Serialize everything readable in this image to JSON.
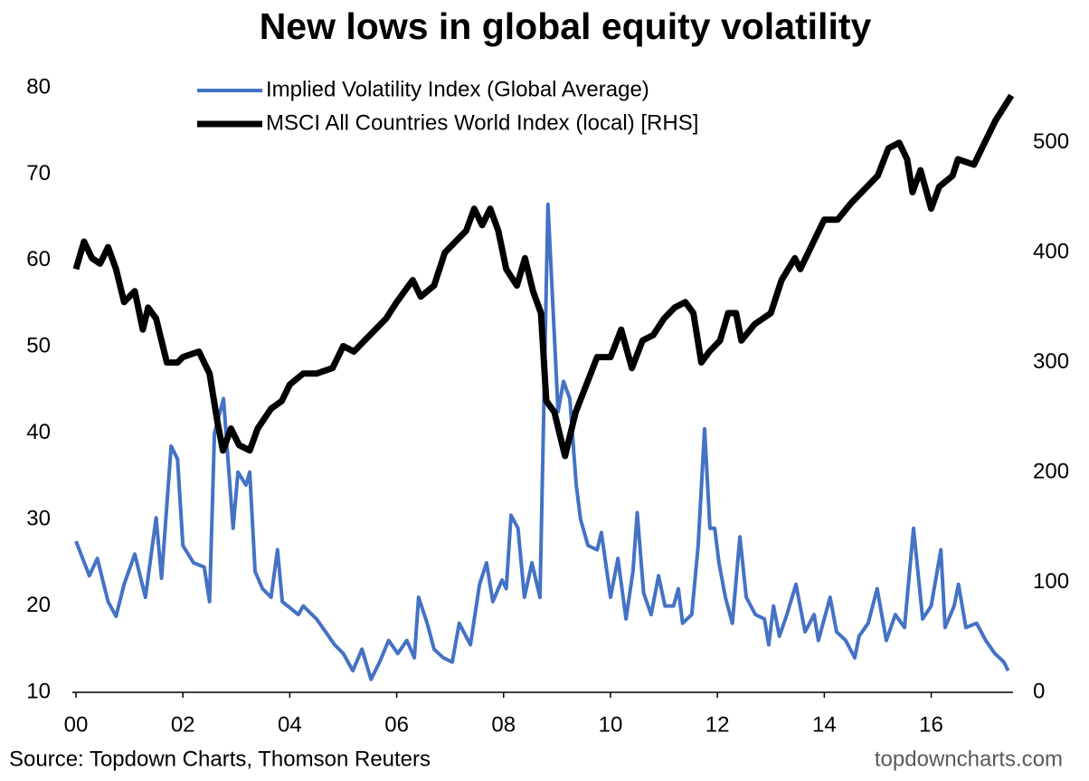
{
  "chart_data": {
    "type": "line",
    "title": "New lows in global equity volatility",
    "source": "Source: Topdown Charts, Thomson Reuters",
    "watermark": "topdowncharts.com",
    "xlim": [
      2000,
      2017.7
    ],
    "xticks": [
      {
        "value": 2000,
        "label": "00"
      },
      {
        "value": 2002,
        "label": "02"
      },
      {
        "value": 2004,
        "label": "04"
      },
      {
        "value": 2006,
        "label": "06"
      },
      {
        "value": 2008,
        "label": "08"
      },
      {
        "value": 2010,
        "label": "10"
      },
      {
        "value": 2012,
        "label": "12"
      },
      {
        "value": 2014,
        "label": "14"
      },
      {
        "value": 2016,
        "label": "16"
      }
    ],
    "ylim": [
      10,
      80
    ],
    "yticks": [
      10,
      20,
      30,
      40,
      50,
      60,
      70,
      80
    ],
    "y2lim": [
      0,
      550
    ],
    "y2ticks": [
      0,
      100,
      200,
      300,
      400,
      500
    ],
    "series": [
      {
        "name": "Implied Volatility Index (Global Average)",
        "color": "#4472c4",
        "width": 4,
        "x": [
          2000.0,
          2000.25,
          2000.4,
          2000.6,
          2000.75,
          2000.9,
          2001.1,
          2001.3,
          2001.5,
          2001.6,
          2001.78,
          2001.9,
          2002.0,
          2002.2,
          2002.4,
          2002.5,
          2002.59,
          2002.76,
          2002.94,
          2003.03,
          2003.18,
          2003.25,
          2003.35,
          2003.49,
          2003.65,
          2003.77,
          2003.86,
          2004.16,
          2004.25,
          2004.5,
          2004.67,
          2004.84,
          2005.0,
          2005.18,
          2005.35,
          2005.52,
          2005.68,
          2005.85,
          2006.02,
          2006.19,
          2006.33,
          2006.41,
          2006.57,
          2006.7,
          2006.87,
          2007.04,
          2007.17,
          2007.38,
          2007.55,
          2007.68,
          2007.8,
          2007.97,
          2008.05,
          2008.14,
          2008.27,
          2008.39,
          2008.53,
          2008.68,
          2008.83,
          2009.02,
          2009.12,
          2009.24,
          2009.36,
          2009.44,
          2009.58,
          2009.75,
          2009.83,
          2010.0,
          2010.14,
          2010.29,
          2010.42,
          2010.5,
          2010.62,
          2010.76,
          2010.9,
          2011.02,
          2011.18,
          2011.27,
          2011.35,
          2011.52,
          2011.64,
          2011.76,
          2011.86,
          2011.95,
          2012.03,
          2012.15,
          2012.28,
          2012.42,
          2012.54,
          2012.71,
          2012.88,
          2012.96,
          2013.05,
          2013.16,
          2013.3,
          2013.47,
          2013.64,
          2013.81,
          2013.89,
          2014.11,
          2014.23,
          2014.4,
          2014.57,
          2014.65,
          2014.82,
          2014.99,
          2015.16,
          2015.33,
          2015.5,
          2015.67,
          2015.84,
          2016.0,
          2016.18,
          2016.26,
          2016.43,
          2016.51,
          2016.65,
          2016.85,
          2017.02,
          2017.19,
          2017.36,
          2017.44
        ],
        "values": [
          27.5,
          23.5,
          25.5,
          20.5,
          18.8,
          22.5,
          26,
          21,
          30.2,
          23.2,
          38.5,
          37,
          27,
          25,
          24.5,
          20.5,
          40,
          44,
          29,
          35.5,
          34,
          35.5,
          24,
          22,
          21,
          26.5,
          20.5,
          19,
          20,
          18.5,
          17,
          15.5,
          14.5,
          12.5,
          15,
          11.5,
          13.5,
          16,
          14.5,
          16,
          14,
          21,
          18,
          15,
          14,
          13.5,
          18,
          15.5,
          22.5,
          25,
          20.5,
          23,
          22,
          30.5,
          29,
          21,
          25,
          21,
          66.5,
          42.5,
          46,
          44,
          34,
          30,
          27,
          26.5,
          28.5,
          21,
          25.5,
          18.5,
          24,
          30.8,
          21.5,
          19,
          23.5,
          20,
          20,
          22,
          18,
          19,
          27,
          40.5,
          29,
          29,
          25,
          21,
          18,
          28,
          21,
          19,
          18.5,
          15.5,
          20,
          16.5,
          19,
          22.5,
          17,
          19,
          16,
          21,
          17,
          16,
          14,
          16.5,
          18,
          22,
          16,
          19,
          17.5,
          29,
          18.5,
          20,
          26.5,
          17.5,
          20,
          22.5,
          17.5,
          18,
          16,
          14.5,
          13.5,
          12.5
        ]
      },
      {
        "name": "MSCI All Countries World Index (local) [RHS]",
        "color": "#000000",
        "width": 7,
        "axis": "y2",
        "x": [
          2000.0,
          2000.15,
          2000.3,
          2000.45,
          2000.6,
          2000.75,
          2000.9,
          2001.1,
          2001.25,
          2001.35,
          2001.5,
          2001.7,
          2001.9,
          2002.0,
          2002.3,
          2002.5,
          2002.65,
          2002.75,
          2002.9,
          2003.05,
          2003.25,
          2003.4,
          2003.65,
          2003.85,
          2004.0,
          2004.25,
          2004.5,
          2004.8,
          2005.0,
          2005.2,
          2005.4,
          2005.6,
          2005.8,
          2006.0,
          2006.3,
          2006.45,
          2006.7,
          2006.9,
          2007.1,
          2007.3,
          2007.45,
          2007.6,
          2007.75,
          2007.9,
          2008.05,
          2008.25,
          2008.4,
          2008.55,
          2008.7,
          2008.8,
          2008.95,
          2009.15,
          2009.35,
          2009.55,
          2009.75,
          2010.0,
          2010.2,
          2010.4,
          2010.6,
          2010.8,
          2011.0,
          2011.2,
          2011.4,
          2011.55,
          2011.7,
          2011.85,
          2012.05,
          2012.2,
          2012.35,
          2012.45,
          2012.7,
          2013.0,
          2013.2,
          2013.45,
          2013.55,
          2013.8,
          2014.0,
          2014.25,
          2014.5,
          2014.8,
          2015.0,
          2015.2,
          2015.4,
          2015.55,
          2015.65,
          2015.8,
          2016.0,
          2016.15,
          2016.4,
          2016.5,
          2016.8,
          2017.0,
          2017.2,
          2017.5
        ],
        "values": [
          385,
          410,
          395,
          390,
          405,
          385,
          355,
          365,
          330,
          350,
          340,
          300,
          300,
          305,
          310,
          290,
          245,
          220,
          240,
          225,
          220,
          240,
          258,
          265,
          280,
          290,
          290,
          295,
          315,
          310,
          320,
          330,
          340,
          355,
          375,
          360,
          370,
          400,
          410,
          420,
          440,
          425,
          440,
          420,
          385,
          370,
          395,
          365,
          345,
          265,
          255,
          215,
          255,
          280,
          305,
          305,
          330,
          295,
          320,
          325,
          340,
          350,
          355,
          345,
          300,
          310,
          320,
          345,
          345,
          320,
          335,
          345,
          375,
          395,
          385,
          410,
          430,
          430,
          445,
          460,
          470,
          495,
          500,
          485,
          455,
          475,
          440,
          460,
          470,
          485,
          480,
          500,
          520,
          543
        ]
      }
    ]
  }
}
